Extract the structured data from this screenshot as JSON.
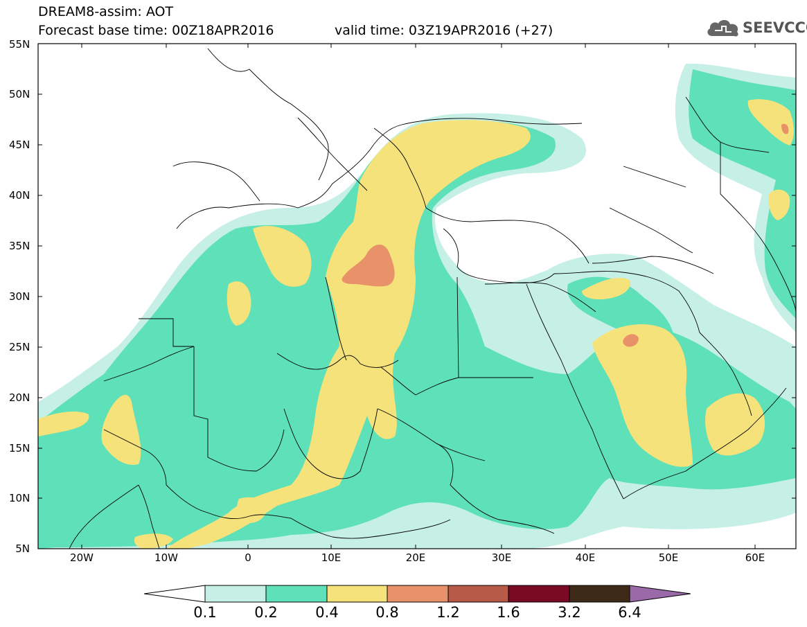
{
  "header": {
    "title": "DREAM8-assim: AOT",
    "base_time": "Forecast base time: 00Z18APR2016",
    "valid_time": "valid time: 03Z19APR2016 (+27)"
  },
  "logo": {
    "text": "SEEVCCC",
    "icon": "cloud-icon"
  },
  "axes": {
    "lat_labels": [
      "55N",
      "50N",
      "45N",
      "40N",
      "35N",
      "30N",
      "25N",
      "20N",
      "15N",
      "10N",
      "5N"
    ],
    "lon_labels": [
      "20W",
      "10W",
      "0",
      "10E",
      "20E",
      "30E",
      "40E",
      "50E",
      "60E"
    ]
  },
  "colorbar": {
    "labels": [
      "0.1",
      "0.2",
      "0.4",
      "0.8",
      "1.2",
      "1.6",
      "3.2",
      "6.4"
    ],
    "colors": [
      "#ffffff",
      "#c6f0e6",
      "#5ee0b8",
      "#f5e27a",
      "#e8926a",
      "#b85a48",
      "#7a0a24",
      "#3e2a18",
      "#9a6aa8"
    ]
  },
  "palette": {
    "level1": "#c6f0e6",
    "level2": "#5ee0b8",
    "level3": "#f5e27a",
    "level4": "#e8926a",
    "border": "#000000"
  }
}
